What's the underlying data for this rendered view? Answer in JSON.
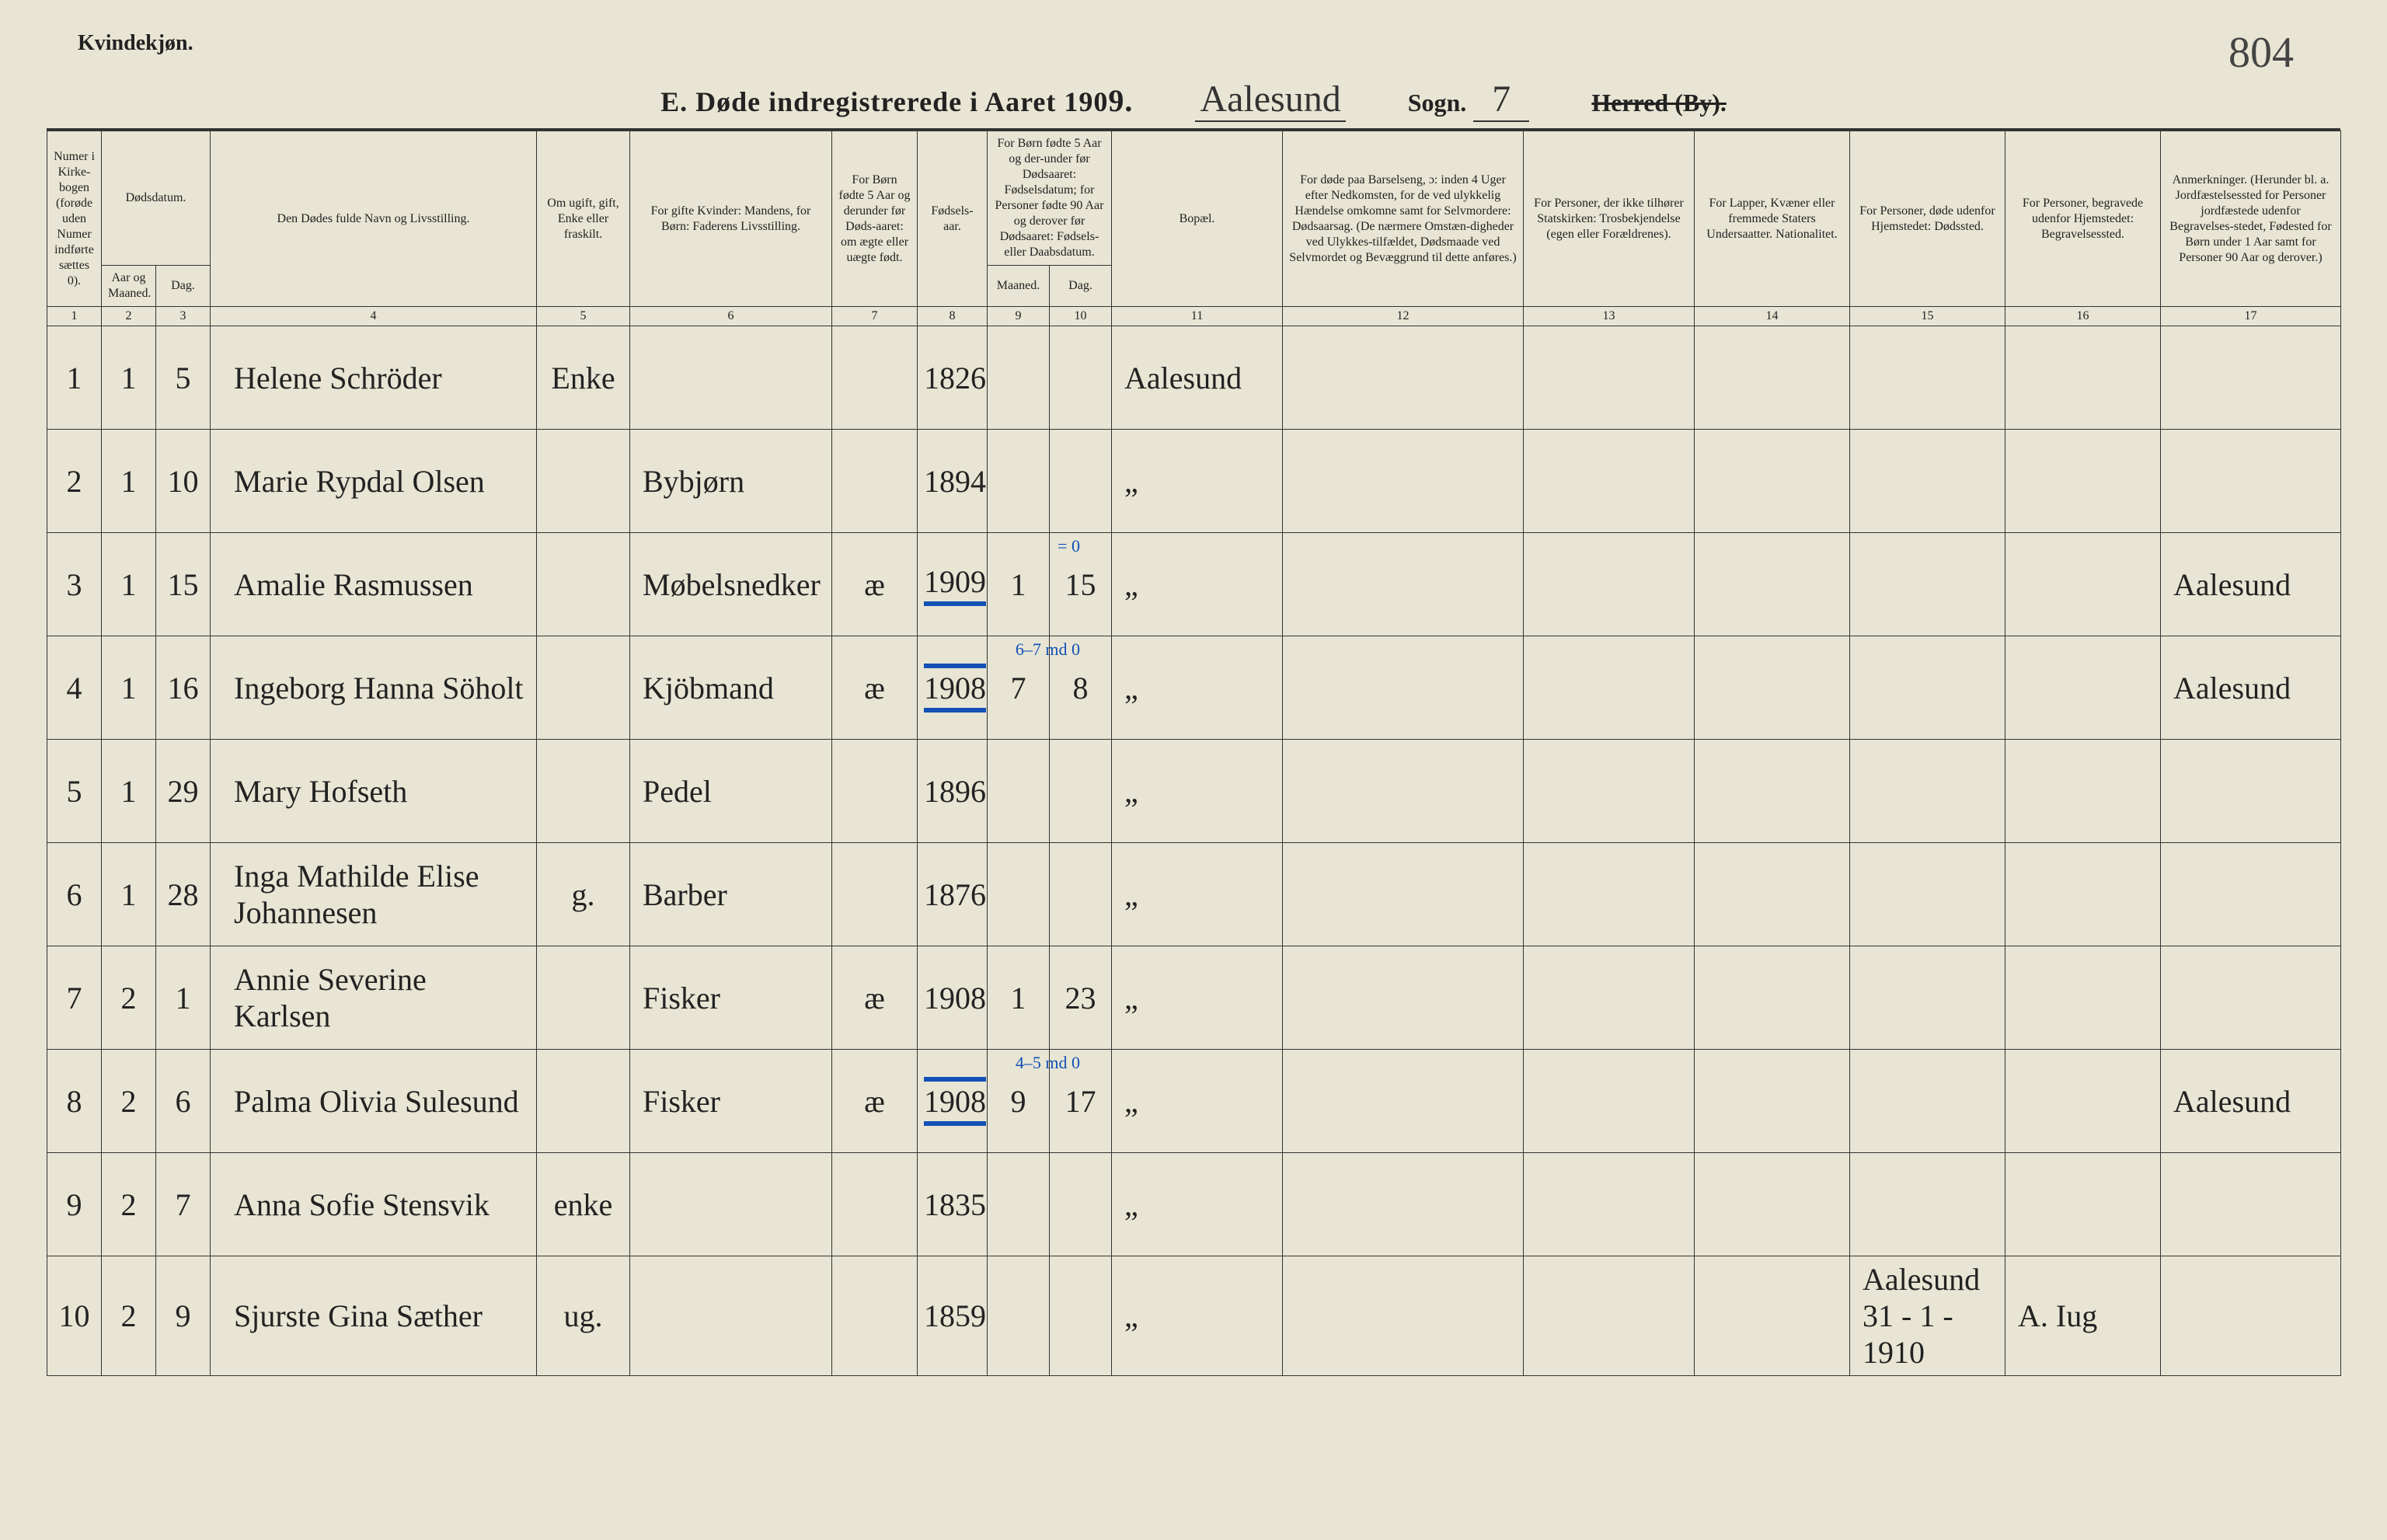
{
  "meta": {
    "corner_label": "Kvindekjøn.",
    "page_number": "804"
  },
  "title": {
    "main_prefix": "E.  Døde indregistrerede i Aaret 190",
    "year_suffix_hand": "9.",
    "parish_hand": "Aalesund",
    "sogn_label": "Sogn.",
    "sogn_hand": "7",
    "herred_label_strike": "Herred (By).",
    "herred_label_keep": ""
  },
  "headers": {
    "col1": "Numer i Kirke-bogen (forøde uden Numer indførte sættes 0).",
    "col2_group": "Dødsdatum.",
    "col2": "Aar og Maaned.",
    "col3": "Dag.",
    "col4": "Den Dødes fulde Navn og Livsstilling.",
    "col5": "Om ugift, gift, Enke eller fraskilt.",
    "col6": "For gifte Kvinder: Mandens, for Børn: Faderens Livsstilling.",
    "col7": "For Børn fødte 5 Aar og derunder før Døds-aaret: om ægte eller uægte født.",
    "col8": "Fødsels-aar.",
    "col9_10_top": "For Børn fødte 5 Aar og der-under før Dødsaaret: Fødselsdatum; for Personer fødte 90 Aar og derover før Dødsaaret: Fødsels- eller Daabsdatum.",
    "col9": "Maaned.",
    "col10": "Dag.",
    "col11": "Bopæl.",
    "col12": "For døde paa Barselseng, ɔ: inden 4 Uger efter Nedkomsten, for de ved ulykkelig Hændelse omkomne samt for Selvmordere: Dødsaarsag. (De nærmere Omstæn-digheder ved Ulykkes-tilfældet, Dødsmaade ved Selvmordet og Bevæggrund til dette anføres.)",
    "col13": "For Personer, der ikke tilhører Statskirken: Trosbekjendelse (egen eller Forældrenes).",
    "col14": "For Lapper, Kvæner eller fremmede Staters Undersaatter. Nationalitet.",
    "col15": "For Personer, døde udenfor Hjemstedet: Dødssted.",
    "col16": "For Personer, begravede udenfor Hjemstedet: Begravelsessted.",
    "col17": "Anmerkninger. (Herunder bl. a. Jordfæstelsessted for Personer jordfæstede udenfor Begravelses-stedet, Fødested for Børn under 1 Aar samt for Personer 90 Aar og derover.)"
  },
  "colnums": [
    "1",
    "2",
    "3",
    "4",
    "5",
    "6",
    "7",
    "8",
    "9",
    "10",
    "11",
    "12",
    "13",
    "14",
    "15",
    "16",
    "17"
  ],
  "rows": [
    {
      "n": "1",
      "m": "1",
      "d": "5",
      "name": "Helene Schröder",
      "status": "Enke",
      "occ": "",
      "leg": "",
      "by": "1826",
      "bm": "",
      "bd": "",
      "res": "Aalesund",
      "cause": "",
      "rel": "",
      "nat": "",
      "dplace": "",
      "bplace": "",
      "note": "",
      "blue": false,
      "annot": ""
    },
    {
      "n": "2",
      "m": "1",
      "d": "10",
      "name": "Marie Rypdal Olsen",
      "status": "",
      "occ": "Bybjørn",
      "leg": "",
      "by": "1894",
      "bm": "",
      "bd": "",
      "res": "„",
      "cause": "",
      "rel": "",
      "nat": "",
      "dplace": "",
      "bplace": "",
      "note": "",
      "blue": false,
      "annot": ""
    },
    {
      "n": "3",
      "m": "1",
      "d": "15",
      "name": "Amalie Rasmussen",
      "status": "",
      "occ": "Møbelsnedker",
      "leg": "æ",
      "by": "1909",
      "bm": "1",
      "bd": "15",
      "res": "„",
      "cause": "",
      "rel": "",
      "nat": "",
      "dplace": "",
      "bplace": "",
      "note": "Aalesund",
      "blue": true,
      "blue_style": "top",
      "annot": "= 0"
    },
    {
      "n": "4",
      "m": "1",
      "d": "16",
      "name": "Ingeborg Hanna Söholt",
      "status": "",
      "occ": "Kjöbmand",
      "leg": "æ",
      "by": "1908",
      "bm": "7",
      "bd": "8",
      "res": "„",
      "cause": "",
      "rel": "",
      "nat": "",
      "dplace": "",
      "bplace": "",
      "note": "Aalesund",
      "blue": true,
      "blue_style": "both",
      "annot": "6–7 md  0"
    },
    {
      "n": "5",
      "m": "1",
      "d": "29",
      "name": "Mary Hofseth",
      "status": "",
      "occ": "Pedel",
      "leg": "",
      "by": "1896",
      "bm": "",
      "bd": "",
      "res": "„",
      "cause": "",
      "rel": "",
      "nat": "",
      "dplace": "",
      "bplace": "",
      "note": "",
      "blue": false,
      "annot": ""
    },
    {
      "n": "6",
      "m": "1",
      "d": "28",
      "name": "Inga Mathilde Elise Johannesen",
      "status": "g.",
      "occ": "Barber",
      "leg": "",
      "by": "1876",
      "bm": "",
      "bd": "",
      "res": "„",
      "cause": "",
      "rel": "",
      "nat": "",
      "dplace": "",
      "bplace": "",
      "note": "",
      "blue": false,
      "annot": ""
    },
    {
      "n": "7",
      "m": "2",
      "d": "1",
      "name": "Annie Severine Karlsen",
      "status": "",
      "occ": "Fisker",
      "leg": "æ",
      "by": "1908",
      "bm": "1",
      "bd": "23",
      "res": "„",
      "cause": "",
      "rel": "",
      "nat": "",
      "dplace": "",
      "bplace": "",
      "note": "",
      "blue": false,
      "annot": ""
    },
    {
      "n": "8",
      "m": "2",
      "d": "6",
      "name": "Palma Olivia Sulesund",
      "status": "",
      "occ": "Fisker",
      "leg": "æ",
      "by": "1908",
      "bm": "9",
      "bd": "17",
      "res": "„",
      "cause": "",
      "rel": "",
      "nat": "",
      "dplace": "",
      "bplace": "",
      "note": "Aalesund",
      "blue": true,
      "blue_style": "both",
      "annot": "4–5 md  0"
    },
    {
      "n": "9",
      "m": "2",
      "d": "7",
      "name": "Anna Sofie Stensvik",
      "status": "enke",
      "occ": "",
      "leg": "",
      "by": "1835",
      "bm": "",
      "bd": "",
      "res": "„",
      "cause": "",
      "rel": "",
      "nat": "",
      "dplace": "",
      "bplace": "",
      "note": "",
      "blue": false,
      "annot": ""
    },
    {
      "n": "10",
      "m": "2",
      "d": "9",
      "name": "Sjurste Gina Sæther",
      "status": "ug.",
      "occ": "",
      "leg": "",
      "by": "1859",
      "bm": "",
      "bd": "",
      "res": "„",
      "cause": "",
      "rel": "",
      "nat": "",
      "dplace": "Aalesund 31 - 1 - 1910",
      "bplace": "A. Iug",
      "note": "",
      "blue": false,
      "annot": ""
    }
  ],
  "colors": {
    "paper": "#e8e5d4",
    "ink": "#222222",
    "rule": "#333333",
    "blue_pencil": "#1250b6"
  }
}
